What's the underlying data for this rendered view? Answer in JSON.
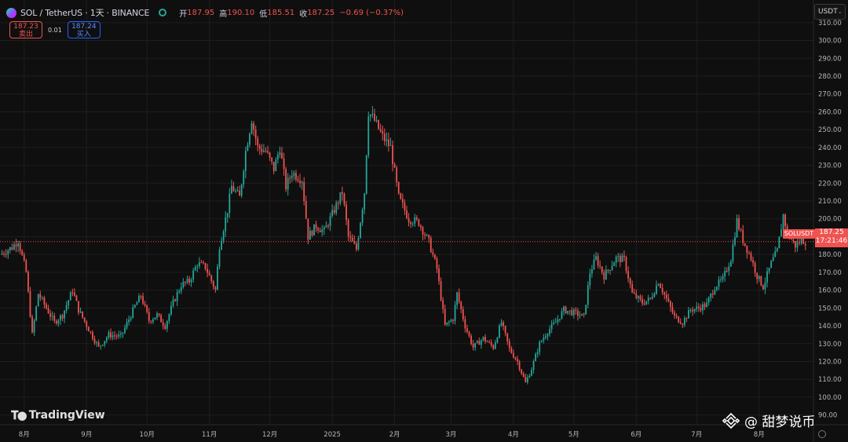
{
  "legend": {
    "title": "SOL / TetherUS · 1天 · BINANCE",
    "open_label": "开",
    "open": "187.95",
    "high_label": "高",
    "high": "190.10",
    "low_label": "低",
    "low": "185.51",
    "close_label": "收",
    "close": "187.25",
    "change": "−0.69 (−0.37%)"
  },
  "trade": {
    "sell_price": "187.23",
    "sell_label": "卖出",
    "spread": "0.01",
    "buy_price": "187.24",
    "buy_label": "买入"
  },
  "currency": "USDT",
  "symbol_tag": "SOLUSDT",
  "last_price": "187.25",
  "countdown": "17:21:46",
  "branding": {
    "logo_text": "TradingView"
  },
  "watermark": "@ 甜梦说币",
  "colors": {
    "up": "#26a69a",
    "down": "#ef5350",
    "background": "#0f0f0f",
    "grid": "#1e1e1e"
  },
  "chart_data": {
    "type": "candlestick",
    "y_axis": {
      "range": [
        85,
        313
      ],
      "ticks": [
        90,
        100,
        110,
        120,
        130,
        140,
        150,
        160,
        170,
        180,
        190,
        200,
        210,
        220,
        230,
        240,
        250,
        260,
        270,
        280,
        290,
        300,
        310
      ],
      "tick_labels": [
        "90.00",
        "100.00",
        "110.00",
        "120.00",
        "130.00",
        "140.00",
        "150.00",
        "160.00",
        "170.00",
        "180.00",
        "190.00",
        "200.00",
        "210.00",
        "220.00",
        "230.00",
        "240.00",
        "250.00",
        "260.00",
        "270.00",
        "280.00",
        "290.00",
        "300.00",
        "310.00"
      ]
    },
    "x_axis": {
      "range": [
        "2024-07-20",
        "2025-08-28"
      ],
      "ticks": [
        {
          "date": "2024-08-01",
          "label": "8月"
        },
        {
          "date": "2024-09-01",
          "label": "9月"
        },
        {
          "date": "2024-10-01",
          "label": "10月"
        },
        {
          "date": "2024-11-01",
          "label": "11月"
        },
        {
          "date": "2024-12-01",
          "label": "12月"
        },
        {
          "date": "2025-01-01",
          "label": "2025"
        },
        {
          "date": "2025-02-01",
          "label": "2月"
        },
        {
          "date": "2025-03-01",
          "label": "3月"
        },
        {
          "date": "2025-04-01",
          "label": "4月"
        },
        {
          "date": "2025-05-01",
          "label": "5月"
        },
        {
          "date": "2025-06-01",
          "label": "6月"
        },
        {
          "date": "2025-07-01",
          "label": "7月"
        },
        {
          "date": "2025-08-01",
          "label": "8月"
        }
      ]
    },
    "last_price_line": 187.25,
    "price_path": [
      {
        "date": "2024-07-20",
        "price": 180
      },
      {
        "date": "2024-07-26",
        "price": 184
      },
      {
        "date": "2024-07-29",
        "price": 188
      },
      {
        "date": "2024-08-02",
        "price": 170
      },
      {
        "date": "2024-08-05",
        "price": 135
      },
      {
        "date": "2024-08-08",
        "price": 158
      },
      {
        "date": "2024-08-12",
        "price": 150
      },
      {
        "date": "2024-08-16",
        "price": 142
      },
      {
        "date": "2024-08-20",
        "price": 146
      },
      {
        "date": "2024-08-25",
        "price": 160
      },
      {
        "date": "2024-08-28",
        "price": 149
      },
      {
        "date": "2024-09-03",
        "price": 136
      },
      {
        "date": "2024-09-07",
        "price": 128
      },
      {
        "date": "2024-09-12",
        "price": 135
      },
      {
        "date": "2024-09-18",
        "price": 134
      },
      {
        "date": "2024-09-25",
        "price": 151
      },
      {
        "date": "2024-09-28",
        "price": 157
      },
      {
        "date": "2024-10-02",
        "price": 143
      },
      {
        "date": "2024-10-06",
        "price": 146
      },
      {
        "date": "2024-10-10",
        "price": 140
      },
      {
        "date": "2024-10-14",
        "price": 153
      },
      {
        "date": "2024-10-18",
        "price": 163
      },
      {
        "date": "2024-10-22",
        "price": 165
      },
      {
        "date": "2024-10-26",
        "price": 175
      },
      {
        "date": "2024-10-30",
        "price": 173
      },
      {
        "date": "2024-11-04",
        "price": 160
      },
      {
        "date": "2024-11-06",
        "price": 185
      },
      {
        "date": "2024-11-10",
        "price": 205
      },
      {
        "date": "2024-11-12",
        "price": 218
      },
      {
        "date": "2024-11-16",
        "price": 212
      },
      {
        "date": "2024-11-19",
        "price": 238
      },
      {
        "date": "2024-11-22",
        "price": 256
      },
      {
        "date": "2024-11-25",
        "price": 240
      },
      {
        "date": "2024-11-29",
        "price": 238
      },
      {
        "date": "2024-12-03",
        "price": 228
      },
      {
        "date": "2024-12-06",
        "price": 240
      },
      {
        "date": "2024-12-09",
        "price": 218
      },
      {
        "date": "2024-12-12",
        "price": 226
      },
      {
        "date": "2024-12-17",
        "price": 222
      },
      {
        "date": "2024-12-20",
        "price": 190
      },
      {
        "date": "2024-12-24",
        "price": 196
      },
      {
        "date": "2024-12-28",
        "price": 193
      },
      {
        "date": "2025-01-02",
        "price": 205
      },
      {
        "date": "2025-01-06",
        "price": 215
      },
      {
        "date": "2025-01-09",
        "price": 190
      },
      {
        "date": "2025-01-13",
        "price": 183
      },
      {
        "date": "2025-01-17",
        "price": 215
      },
      {
        "date": "2025-01-19",
        "price": 260
      },
      {
        "date": "2025-01-22",
        "price": 255
      },
      {
        "date": "2025-01-26",
        "price": 246
      },
      {
        "date": "2025-01-30",
        "price": 240
      },
      {
        "date": "2025-02-03",
        "price": 212
      },
      {
        "date": "2025-02-08",
        "price": 200
      },
      {
        "date": "2025-02-13",
        "price": 198
      },
      {
        "date": "2025-02-18",
        "price": 187
      },
      {
        "date": "2025-02-22",
        "price": 172
      },
      {
        "date": "2025-02-26",
        "price": 140
      },
      {
        "date": "2025-03-02",
        "price": 144
      },
      {
        "date": "2025-03-04",
        "price": 158
      },
      {
        "date": "2025-03-08",
        "price": 140
      },
      {
        "date": "2025-03-12",
        "price": 128
      },
      {
        "date": "2025-03-17",
        "price": 133
      },
      {
        "date": "2025-03-22",
        "price": 128
      },
      {
        "date": "2025-03-26",
        "price": 142
      },
      {
        "date": "2025-03-30",
        "price": 127
      },
      {
        "date": "2025-04-03",
        "price": 120
      },
      {
        "date": "2025-04-07",
        "price": 108
      },
      {
        "date": "2025-04-10",
        "price": 116
      },
      {
        "date": "2025-04-14",
        "price": 130
      },
      {
        "date": "2025-04-18",
        "price": 137
      },
      {
        "date": "2025-04-22",
        "price": 142
      },
      {
        "date": "2025-04-26",
        "price": 149
      },
      {
        "date": "2025-05-02",
        "price": 147
      },
      {
        "date": "2025-05-06",
        "price": 145
      },
      {
        "date": "2025-05-09",
        "price": 170
      },
      {
        "date": "2025-05-12",
        "price": 178
      },
      {
        "date": "2025-05-16",
        "price": 168
      },
      {
        "date": "2025-05-22",
        "price": 178
      },
      {
        "date": "2025-05-26",
        "price": 177
      },
      {
        "date": "2025-05-30",
        "price": 158
      },
      {
        "date": "2025-06-04",
        "price": 153
      },
      {
        "date": "2025-06-08",
        "price": 155
      },
      {
        "date": "2025-06-12",
        "price": 165
      },
      {
        "date": "2025-06-16",
        "price": 155
      },
      {
        "date": "2025-06-20",
        "price": 145
      },
      {
        "date": "2025-06-24",
        "price": 142
      },
      {
        "date": "2025-06-28",
        "price": 149
      },
      {
        "date": "2025-07-02",
        "price": 150
      },
      {
        "date": "2025-07-06",
        "price": 152
      },
      {
        "date": "2025-07-10",
        "price": 162
      },
      {
        "date": "2025-07-14",
        "price": 166
      },
      {
        "date": "2025-07-18",
        "price": 178
      },
      {
        "date": "2025-07-21",
        "price": 199
      },
      {
        "date": "2025-07-24",
        "price": 188
      },
      {
        "date": "2025-07-28",
        "price": 178
      },
      {
        "date": "2025-07-31",
        "price": 168
      },
      {
        "date": "2025-08-03",
        "price": 162
      },
      {
        "date": "2025-08-07",
        "price": 175
      },
      {
        "date": "2025-08-10",
        "price": 182
      },
      {
        "date": "2025-08-13",
        "price": 202
      },
      {
        "date": "2025-08-15",
        "price": 192
      },
      {
        "date": "2025-08-19",
        "price": 185
      },
      {
        "date": "2025-08-22",
        "price": 188
      },
      {
        "date": "2025-08-24",
        "price": 187.25
      }
    ]
  }
}
